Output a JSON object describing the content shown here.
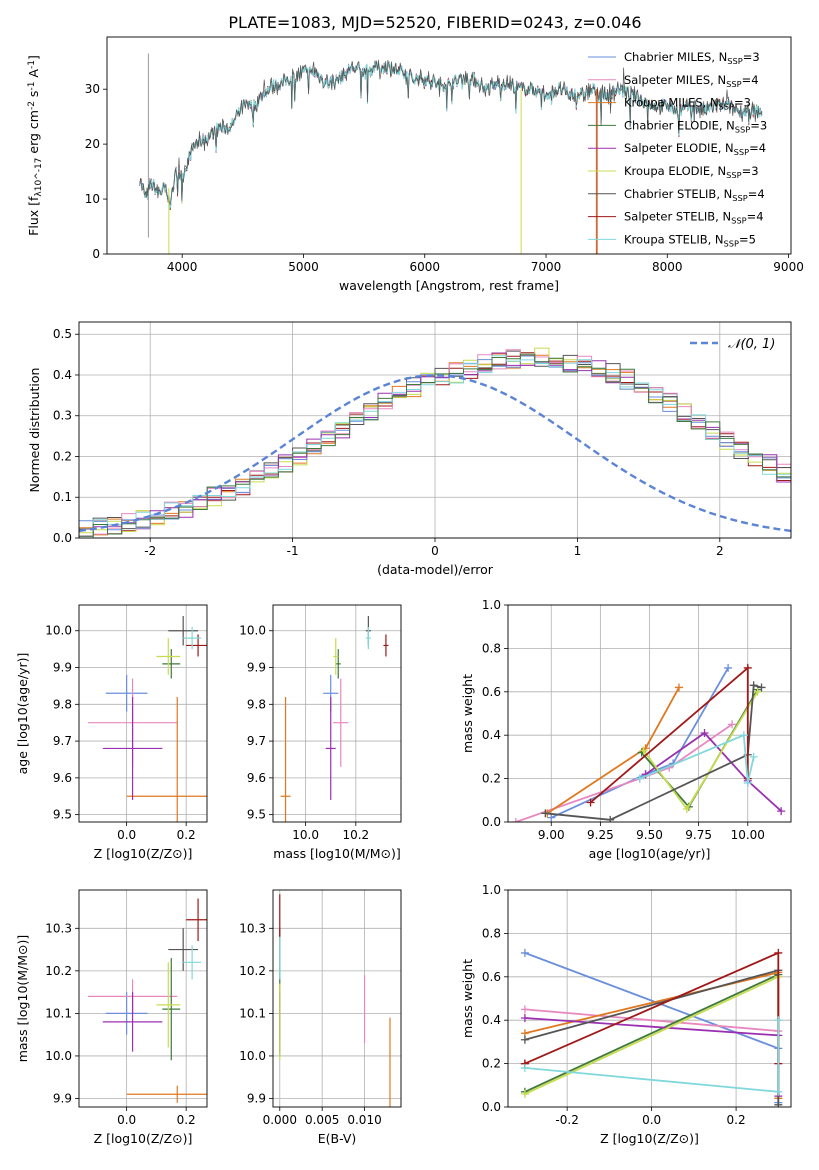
{
  "title": "PLATE=1083, MJD=52520, FIBERID=0243, z=0.046",
  "colors": [
    "#6a8fdc",
    "#e888c0",
    "#e07820",
    "#3e7a3e",
    "#9a30b0",
    "#c8dc50",
    "#555555",
    "#a01818",
    "#80d8dc"
  ],
  "chart_data": [
    {
      "type": "line",
      "xlabel": "wavelength [Angstrom, rest frame]",
      "ylabel": "Flux [f_λ10^-17 erg cm^-2 s^-1 A^-1]",
      "xlim": [
        3380,
        9020
      ],
      "ylim": [
        0,
        39.5
      ],
      "xticks": [
        4000,
        5000,
        6000,
        7000,
        8000,
        9000
      ],
      "yticks": [
        0,
        10,
        20,
        30
      ],
      "legend_placement": "top-right",
      "series": [
        {
          "name": "Chabrier MILES, N_SSP=3"
        },
        {
          "name": "Salpeter MILES, N_SSP=4"
        },
        {
          "name": "Kroupa MILES, N_SSP=3"
        },
        {
          "name": "Chabrier ELODIE, N_SSP=3"
        },
        {
          "name": "Salpeter ELODIE, N_SSP=4"
        },
        {
          "name": "Kroupa ELODIE, N_SSP=3"
        },
        {
          "name": "Chabrier STELIB, N_SSP=4"
        },
        {
          "name": "Salpeter STELIB, N_SSP=4"
        },
        {
          "name": "Kroupa STELIB, N_SSP=5"
        }
      ],
      "envelope_x": [
        3650,
        3700,
        3750,
        3800,
        3850,
        3900,
        3950,
        4000,
        4100,
        4200,
        4300,
        4400,
        4500,
        4600,
        4700,
        4800,
        4900,
        5000,
        5100,
        5200,
        5300,
        5400,
        5500,
        5600,
        5700,
        5800,
        5900,
        6000,
        6100,
        6200,
        6300,
        6400,
        6500,
        6600,
        6700,
        6800,
        6900,
        7000,
        7100,
        7200,
        7300,
        7400,
        7500,
        7600,
        7700,
        7800,
        7900,
        8000,
        8100,
        8200,
        8300,
        8400,
        8500,
        8600,
        8700,
        8800
      ],
      "envelope_y": [
        14,
        10,
        13,
        11,
        12,
        9,
        15,
        14,
        20,
        21,
        23,
        23,
        27,
        27,
        30,
        31,
        32,
        33,
        33,
        31,
        32,
        34,
        33,
        34,
        34,
        33,
        32,
        32,
        31,
        31,
        32,
        32,
        30,
        31,
        31,
        30,
        30,
        29,
        30,
        29,
        29,
        30,
        29,
        30,
        29,
        28,
        27,
        27,
        26,
        27,
        26,
        27,
        27,
        26,
        26,
        26
      ],
      "drop_lines": [
        {
          "series": 5,
          "x": 3890,
          "y_from": 12,
          "y_to": 0
        },
        {
          "series": 5,
          "x": 6795,
          "y_from": 30,
          "y_to": 0
        },
        {
          "series": 7,
          "x": 7420,
          "y_from": 30,
          "y_to": 0
        },
        {
          "series": 2,
          "x": 7415,
          "y_from": 30,
          "y_to": 0
        }
      ]
    },
    {
      "type": "bar",
      "subtype": "step-histogram",
      "xlabel": "(data-model)/error",
      "ylabel": "Normed distribution",
      "xlim": [
        -2.5,
        2.5
      ],
      "ylim": [
        0,
        0.53
      ],
      "xticks": [
        -2,
        -1,
        0,
        1,
        2
      ],
      "yticks": [
        0.0,
        0.1,
        0.2,
        0.3,
        0.4,
        0.5
      ],
      "grid": true,
      "legend": [
        {
          "label": "N(0,1)",
          "style": "dashed",
          "color": "#5b84d6"
        }
      ],
      "legend_placement": "top-right",
      "bin_edges_start": -2.5,
      "bin_width": 0.1,
      "base_heights": [
        0.02,
        0.025,
        0.03,
        0.035,
        0.045,
        0.055,
        0.065,
        0.075,
        0.085,
        0.1,
        0.115,
        0.13,
        0.145,
        0.16,
        0.18,
        0.2,
        0.22,
        0.24,
        0.265,
        0.29,
        0.31,
        0.33,
        0.35,
        0.37,
        0.385,
        0.395,
        0.405,
        0.415,
        0.425,
        0.43,
        0.44,
        0.445,
        0.445,
        0.44,
        0.43,
        0.425,
        0.415,
        0.405,
        0.39,
        0.375,
        0.355,
        0.335,
        0.31,
        0.29,
        0.265,
        0.24,
        0.22,
        0.2,
        0.18,
        0.16,
        0.145,
        0.125,
        0.11,
        0.095,
        0.085,
        0.07,
        0.06,
        0.055,
        0.05,
        0.045,
        0.04,
        0.035,
        0.03,
        0.025,
        0.022,
        0.02,
        0.018,
        0.016,
        0.014,
        0.012,
        0.01,
        0.01,
        0.01,
        0.01,
        0.01,
        0.01,
        0.01,
        0.01,
        0.01,
        0.01
      ]
    },
    {
      "type": "scatter",
      "subtype": "errorbar",
      "xlabel": "Z [log10(Z/Z⊙)]",
      "ylabel": "age  [log10(age/yr)]",
      "xlim": [
        -0.16,
        0.27
      ],
      "ylim": [
        9.48,
        10.07
      ],
      "xticks": [
        0.0,
        0.2
      ],
      "yticks": [
        9.5,
        9.6,
        9.7,
        9.8,
        9.9,
        10.0
      ],
      "grid": true,
      "points": [
        {
          "series": 0,
          "x": 0.0,
          "y": 9.83,
          "xerr": 0.07,
          "yerr": 0.05
        },
        {
          "series": 1,
          "x": 0.02,
          "y": 9.75,
          "xerr": 0.15,
          "yerr": 0.12
        },
        {
          "series": 2,
          "x": 0.17,
          "y": 9.55,
          "xerr": 0.17,
          "yerr": 0.27
        },
        {
          "series": 3,
          "x": 0.15,
          "y": 9.91,
          "xerr": 0.03,
          "yerr": 0.04
        },
        {
          "series": 4,
          "x": 0.02,
          "y": 9.68,
          "xerr": 0.1,
          "yerr": 0.14
        },
        {
          "series": 5,
          "x": 0.14,
          "y": 9.93,
          "xerr": 0.04,
          "yerr": 0.05
        },
        {
          "series": 6,
          "x": 0.19,
          "y": 10.0,
          "xerr": 0.05,
          "yerr": 0.04
        },
        {
          "series": 7,
          "x": 0.24,
          "y": 9.96,
          "xerr": 0.04,
          "yerr": 0.03
        },
        {
          "series": 8,
          "x": 0.22,
          "y": 9.98,
          "xerr": 0.03,
          "yerr": 0.03
        }
      ]
    },
    {
      "type": "scatter",
      "subtype": "errorbar",
      "xlabel": "mass [log10(M/M⊙)]",
      "ylabel": "",
      "xlim": [
        9.87,
        10.38
      ],
      "ylim": [
        9.48,
        10.07
      ],
      "xticks": [
        10.0,
        10.2
      ],
      "yticks": [
        9.5,
        9.6,
        9.7,
        9.8,
        9.9,
        10.0
      ],
      "grid": true,
      "points": [
        {
          "series": 0,
          "x": 10.1,
          "y": 9.83,
          "xerr": 0.03,
          "yerr": 0.05
        },
        {
          "series": 1,
          "x": 10.14,
          "y": 9.75,
          "xerr": 0.03,
          "yerr": 0.12
        },
        {
          "series": 2,
          "x": 9.92,
          "y": 9.55,
          "xerr": 0.02,
          "yerr": 0.27
        },
        {
          "series": 3,
          "x": 10.13,
          "y": 9.91,
          "xerr": 0.01,
          "yerr": 0.04
        },
        {
          "series": 4,
          "x": 10.1,
          "y": 9.68,
          "xerr": 0.02,
          "yerr": 0.14
        },
        {
          "series": 5,
          "x": 10.12,
          "y": 9.93,
          "xerr": 0.01,
          "yerr": 0.05
        },
        {
          "series": 6,
          "x": 10.25,
          "y": 10.0,
          "xerr": 0.01,
          "yerr": 0.04
        },
        {
          "series": 7,
          "x": 10.32,
          "y": 9.96,
          "xerr": 0.01,
          "yerr": 0.03
        },
        {
          "series": 8,
          "x": 10.25,
          "y": 9.98,
          "xerr": 0.01,
          "yerr": 0.03
        }
      ]
    },
    {
      "type": "line",
      "xlabel": "age  [log10(age/yr)]",
      "ylabel": "mass weight",
      "xlim": [
        8.78,
        10.22
      ],
      "ylim": [
        0.0,
        1.0
      ],
      "xticks": [
        9.0,
        9.25,
        9.5,
        9.75,
        10.0
      ],
      "yticks": [
        0.0,
        0.2,
        0.4,
        0.6,
        0.8,
        1.0
      ],
      "grid": true,
      "series": [
        {
          "index": 0,
          "x": [
            9.0,
            9.48,
            9.62,
            9.9
          ],
          "y": [
            0.02,
            0.22,
            0.27,
            0.71
          ]
        },
        {
          "index": 1,
          "x": [
            8.82,
            9.45,
            9.6,
            9.92
          ],
          "y": [
            0.0,
            0.2,
            0.25,
            0.45
          ]
        },
        {
          "index": 2,
          "x": [
            8.98,
            9.48,
            9.65
          ],
          "y": [
            0.04,
            0.34,
            0.62
          ]
        },
        {
          "index": 3,
          "x": [
            9.46,
            9.7,
            10.05
          ],
          "y": [
            0.32,
            0.07,
            0.61
          ]
        },
        {
          "index": 4,
          "x": [
            9.48,
            9.78,
            10.0,
            10.17
          ],
          "y": [
            0.22,
            0.41,
            0.19,
            0.05
          ]
        },
        {
          "index": 5,
          "x": [
            9.47,
            9.69,
            10.05
          ],
          "y": [
            0.33,
            0.06,
            0.6
          ]
        },
        {
          "index": 6,
          "x": [
            8.97,
            9.3,
            10.0,
            10.03,
            10.07
          ],
          "y": [
            0.04,
            0.01,
            0.31,
            0.63,
            0.62
          ]
        },
        {
          "index": 7,
          "x": [
            9.2,
            10.0,
            10.0
          ],
          "y": [
            0.09,
            0.71,
            0.2
          ]
        },
        {
          "index": 8,
          "x": [
            9.45,
            9.98,
            10.0,
            10.03
          ],
          "y": [
            0.2,
            0.4,
            0.18,
            0.3
          ]
        }
      ]
    },
    {
      "type": "scatter",
      "subtype": "errorbar",
      "xlabel": "Z [log10(Z/Z⊙)]",
      "ylabel": "mass [log10(M/M⊙)]",
      "xlim": [
        -0.16,
        0.27
      ],
      "ylim": [
        9.88,
        10.39
      ],
      "xticks": [
        0.0,
        0.2
      ],
      "yticks": [
        9.9,
        10.0,
        10.1,
        10.2,
        10.3
      ],
      "grid": true,
      "points": [
        {
          "series": 0,
          "x": 0.0,
          "y": 10.1,
          "xerr": 0.07,
          "yerr": 0.05
        },
        {
          "series": 1,
          "x": 0.02,
          "y": 10.14,
          "xerr": 0.15,
          "yerr": 0.04
        },
        {
          "series": 2,
          "x": 0.17,
          "y": 9.91,
          "xerr": 0.17,
          "yerr": 0.02
        },
        {
          "series": 3,
          "x": 0.15,
          "y": 10.11,
          "xerr": 0.03,
          "yerr": 0.12
        },
        {
          "series": 4,
          "x": 0.02,
          "y": 10.08,
          "xerr": 0.1,
          "yerr": 0.07
        },
        {
          "series": 5,
          "x": 0.14,
          "y": 10.12,
          "xerr": 0.04,
          "yerr": 0.1
        },
        {
          "series": 6,
          "x": 0.19,
          "y": 10.25,
          "xerr": 0.05,
          "yerr": 0.05
        },
        {
          "series": 7,
          "x": 0.24,
          "y": 10.32,
          "xerr": 0.04,
          "yerr": 0.05
        },
        {
          "series": 8,
          "x": 0.22,
          "y": 10.22,
          "xerr": 0.03,
          "yerr": 0.04
        }
      ]
    },
    {
      "type": "scatter",
      "subtype": "errorbar",
      "xlabel": "E(B-V)",
      "ylabel": "",
      "xlim": [
        -0.0008,
        0.0143
      ],
      "ylim": [
        9.88,
        10.39
      ],
      "xticks": [
        0.0,
        0.005,
        0.01
      ],
      "xticklabels": [
        "0.000",
        "0.005",
        "0.010"
      ],
      "yticks": [
        9.9,
        10.0,
        10.1,
        10.2,
        10.3
      ],
      "grid": true,
      "points": [
        {
          "series": 0,
          "x": 0.0,
          "y": 10.1,
          "xerr": 0,
          "yerr": 0.05
        },
        {
          "series": 1,
          "x": 0.01,
          "y": 10.11,
          "xerr": 0,
          "yerr": 0.08
        },
        {
          "series": 2,
          "x": 0.013,
          "y": 9.98,
          "xerr": 0,
          "yerr": 0.11
        },
        {
          "series": 3,
          "x": 0.0,
          "y": 10.1,
          "xerr": 0,
          "yerr": 0.1
        },
        {
          "series": 4,
          "x": 0.0,
          "y": 10.08,
          "xerr": 0,
          "yerr": 0.07
        },
        {
          "series": 5,
          "x": 0.0,
          "y": 10.08,
          "xerr": 0,
          "yerr": 0.09
        },
        {
          "series": 6,
          "x": 0.0,
          "y": 10.25,
          "xerr": 0,
          "yerr": 0.05
        },
        {
          "series": 7,
          "x": 0.0,
          "y": 10.33,
          "xerr": 0,
          "yerr": 0.05
        },
        {
          "series": 8,
          "x": 0.0,
          "y": 10.23,
          "xerr": 0,
          "yerr": 0.05
        }
      ]
    },
    {
      "type": "line",
      "xlabel": "Z [log10(Z/Z⊙)]",
      "ylabel": "mass weight",
      "xlim": [
        -0.34,
        0.33
      ],
      "ylim": [
        0.0,
        1.0
      ],
      "xticks": [
        -0.2,
        0.0,
        0.2
      ],
      "yticks": [
        0.0,
        0.2,
        0.4,
        0.6,
        0.8,
        1.0
      ],
      "grid": true,
      "series": [
        {
          "index": 0,
          "x": [
            -0.3,
            0.3,
            0.3
          ],
          "y": [
            0.71,
            0.27,
            0.02
          ]
        },
        {
          "index": 1,
          "x": [
            -0.3,
            0.3,
            0.3
          ],
          "y": [
            0.45,
            0.35,
            0.2
          ]
        },
        {
          "index": 2,
          "x": [
            -0.3,
            0.3,
            0.3
          ],
          "y": [
            0.34,
            0.62,
            0.04
          ]
        },
        {
          "index": 3,
          "x": [
            -0.3,
            0.3
          ],
          "y": [
            0.07,
            0.61
          ]
        },
        {
          "index": 4,
          "x": [
            -0.3,
            0.3,
            0.3
          ],
          "y": [
            0.41,
            0.33,
            0.05
          ]
        },
        {
          "index": 5,
          "x": [
            -0.3,
            0.3
          ],
          "y": [
            0.06,
            0.6
          ]
        },
        {
          "index": 6,
          "x": [
            -0.3,
            0.3,
            0.3
          ],
          "y": [
            0.31,
            0.63,
            0.01
          ]
        },
        {
          "index": 7,
          "x": [
            -0.3,
            -0.3,
            0.3,
            0.3
          ],
          "y": [
            0.2,
            0.2,
            0.71,
            0.2
          ]
        },
        {
          "index": 8,
          "x": [
            -0.3,
            0.3,
            0.3
          ],
          "y": [
            0.18,
            0.07,
            0.4
          ]
        }
      ]
    }
  ]
}
